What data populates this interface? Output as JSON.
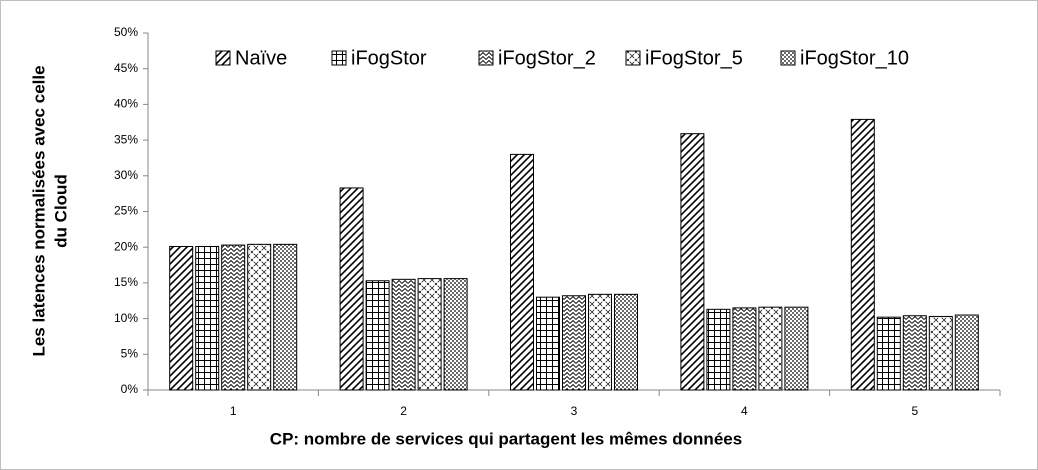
{
  "chart_data": {
    "type": "bar",
    "y_label": [
      "Les latences normalisées avec celle",
      "du Cloud"
    ],
    "x_label": "CP: nombre de services qui partagent les mêmes données",
    "categories": [
      "1",
      "2",
      "3",
      "4",
      "5"
    ],
    "series": [
      {
        "name": "Naïve",
        "color": "#000000",
        "pattern": "diagonal",
        "values": [
          20.1,
          28.3,
          33.0,
          35.9,
          37.9
        ]
      },
      {
        "name": "iFogStor",
        "color": "#000000",
        "pattern": "grid",
        "values": [
          20.1,
          15.3,
          13.0,
          11.3,
          10.2
        ]
      },
      {
        "name": "iFogStor_2",
        "color": "#000000",
        "pattern": "zigzag",
        "values": [
          20.3,
          15.5,
          13.2,
          11.5,
          10.4
        ]
      },
      {
        "name": "iFogStor_5",
        "color": "#000000",
        "pattern": "crosshatch",
        "values": [
          20.4,
          15.6,
          13.4,
          11.6,
          10.3
        ]
      },
      {
        "name": "iFogStor_10",
        "color": "#000000",
        "pattern": "dots",
        "values": [
          20.4,
          15.6,
          13.4,
          11.6,
          10.5
        ]
      }
    ],
    "ylim": [
      0,
      50
    ],
    "yticks": [
      {
        "value": 0,
        "label": "0%"
      },
      {
        "value": 5,
        "label": "5%"
      },
      {
        "value": 10,
        "label": "10%"
      },
      {
        "value": 15,
        "label": "15%"
      },
      {
        "value": 20,
        "label": "20%"
      },
      {
        "value": 25,
        "label": "25%"
      },
      {
        "value": 30,
        "label": "30%"
      },
      {
        "value": 35,
        "label": "35%"
      },
      {
        "value": 40,
        "label": "40%"
      },
      {
        "value": 45,
        "label": "45%"
      },
      {
        "value": 50,
        "label": "50%"
      }
    ],
    "grid": false,
    "legend": "top"
  }
}
